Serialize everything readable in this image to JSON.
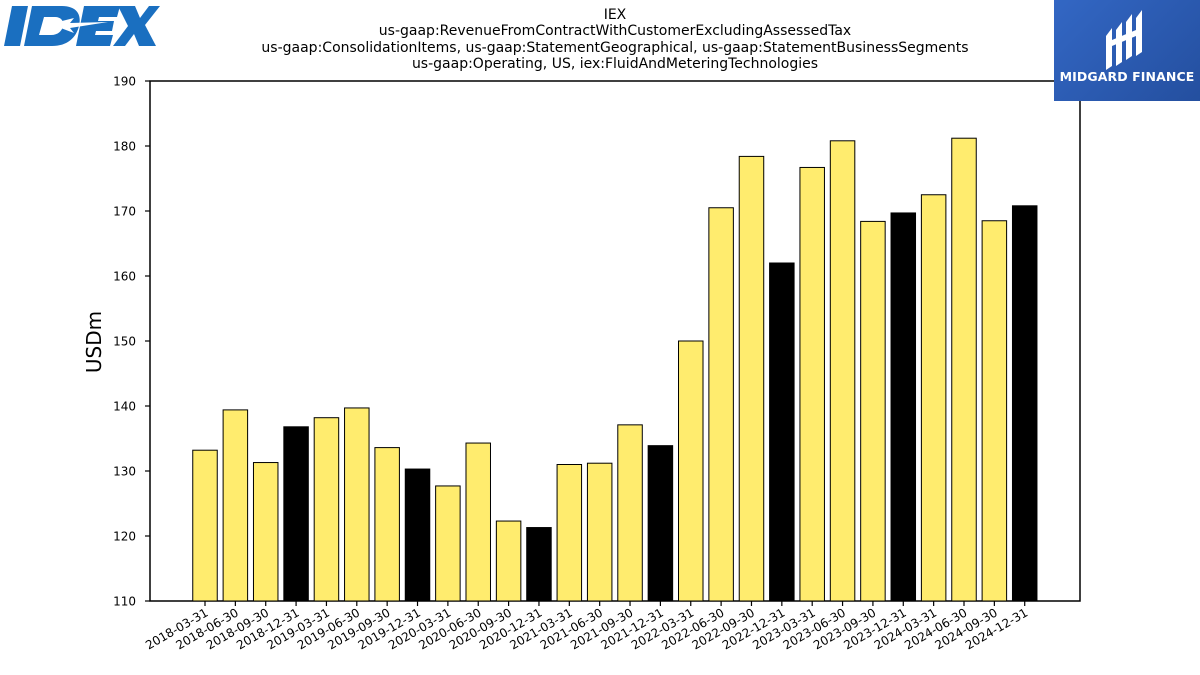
{
  "header": {
    "title_lines": [
      "IEX",
      "us-gaap:RevenueFromContractWithCustomerExcludingAssessedTax",
      "us-gaap:ConsolidationItems, us-gaap:StatementGeographical, us-gaap:StatementBusinessSegments",
      "us-gaap:Operating, US, iex:FluidAndMeteringTechnologies"
    ]
  },
  "logos": {
    "left": {
      "text": "IDEX",
      "icon": "idex-logo-icon",
      "color": "#1a6fc0"
    },
    "right": {
      "text": "MIDGARD FINANCE",
      "icon": "midgard-logo-icon",
      "color": "#2b5db8"
    }
  },
  "colors": {
    "quarter_bar": "#ffec6e",
    "year_end_bar": "#000000",
    "bar_edge": "#000000"
  },
  "chart_data": {
    "type": "bar",
    "ylabel": "USDm",
    "xlabel": "",
    "ylim": [
      110,
      190
    ],
    "yticks": [
      110,
      120,
      130,
      140,
      150,
      160,
      170,
      180,
      190
    ],
    "grid": false,
    "categories": [
      "2018-03-31",
      "2018-06-30",
      "2018-09-30",
      "2018-12-31",
      "2019-03-31",
      "2019-06-30",
      "2019-09-30",
      "2019-12-31",
      "2020-03-31",
      "2020-06-30",
      "2020-09-30",
      "2020-12-31",
      "2021-03-31",
      "2021-06-30",
      "2021-09-30",
      "2021-12-31",
      "2022-03-31",
      "2022-06-30",
      "2022-09-30",
      "2022-12-31",
      "2023-03-31",
      "2023-06-30",
      "2023-09-30",
      "2023-12-31",
      "2024-03-31",
      "2024-06-30",
      "2024-09-30",
      "2024-12-31"
    ],
    "values": [
      133.2,
      139.4,
      131.3,
      136.8,
      138.2,
      139.7,
      133.6,
      130.3,
      127.7,
      134.3,
      122.3,
      121.3,
      131.0,
      131.2,
      137.1,
      133.9,
      150.0,
      170.5,
      178.4,
      162.0,
      176.7,
      180.8,
      168.4,
      169.7,
      172.5,
      181.2,
      168.5,
      170.8
    ],
    "bar_kind": [
      "quarter",
      "quarter",
      "quarter",
      "year_end",
      "quarter",
      "quarter",
      "quarter",
      "year_end",
      "quarter",
      "quarter",
      "quarter",
      "year_end",
      "quarter",
      "quarter",
      "quarter",
      "year_end",
      "quarter",
      "quarter",
      "quarter",
      "year_end",
      "quarter",
      "quarter",
      "quarter",
      "year_end",
      "quarter",
      "quarter",
      "quarter",
      "year_end"
    ]
  }
}
